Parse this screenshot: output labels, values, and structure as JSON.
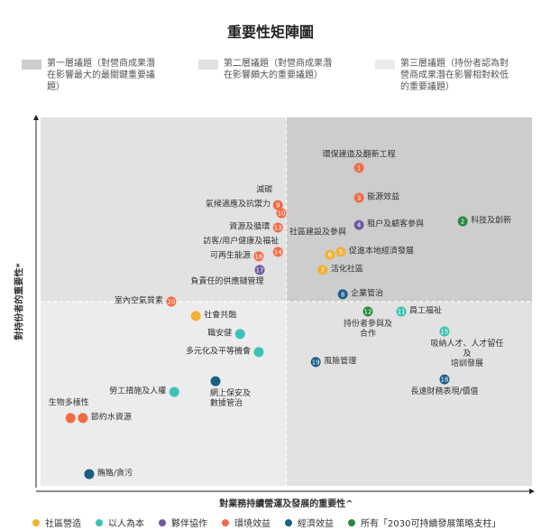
{
  "chart_data": {
    "type": "scatter",
    "title": "重要性矩陣圖",
    "tiers": [
      {
        "color": "#cdcdcd",
        "label": "第一層議題（對營商成果潛在影響最大的最關鍵重要議題）"
      },
      {
        "color": "#e2e2e2",
        "label": "第二層議題（對營商成果潛在影響頗大的重要議題）"
      },
      {
        "color": "#ececec",
        "label": "第三層議題（持份者認為對營商成果潛在影響相對較低的重要議題）"
      }
    ],
    "x_label": "對業務持續營運及發展的重要性^",
    "y_label": "對持份者的重要性*",
    "xlim": [
      0,
      100
    ],
    "ylim": [
      0,
      100
    ],
    "series": [
      {
        "name": "社區營造",
        "color": "#f2b134",
        "ids": [
          "5",
          "6",
          "7",
          null
        ],
        "labels": [
          "促進本地經濟發展",
          "社區建設及參與",
          "活化社區",
          "社會共融"
        ],
        "x": [
          61.1,
          58.9,
          57.4,
          31.6
        ],
        "y": [
          63.5,
          62.7,
          58.6,
          46.1
        ]
      },
      {
        "name": "以人為本",
        "color": "#3cc3b3",
        "ids": [
          "11",
          null,
          null,
          "15",
          null
        ],
        "labels": [
          "員工福祉",
          "職安健",
          "多元化及平等機會",
          "吸納人才、人才留任及\n培訓發展",
          "勞工措施及人權"
        ],
        "x": [
          73.4,
          40.6,
          44.4,
          82.2,
          27.2
        ],
        "y": [
          47.3,
          41.2,
          36.3,
          41.9,
          25.5
        ]
      },
      {
        "name": "夥伴協作",
        "color": "#6f5aa0",
        "ids": [
          "4",
          "17"
        ],
        "labels": [
          "租户及顧客參與",
          "負責任的供應鏈管理"
        ],
        "x": [
          64.8,
          44.6
        ],
        "y": [
          70.8,
          58.6
        ]
      },
      {
        "name": "環境效益",
        "color": "#f26b45",
        "ids": [
          "1",
          "3",
          "9",
          "10",
          "13",
          "14",
          "16",
          "20",
          null,
          null
        ],
        "labels": [
          "環保建造及翻新工程",
          "能源效益",
          "減碳",
          "氣候適應及抗禦力",
          "資源及循環",
          "訪客/用户健康及福祉",
          "可再生能源",
          "室內空氣質素",
          "生物多樣性",
          "節約水資源"
        ],
        "x": [
          64.8,
          64.8,
          48.3,
          49.0,
          48.3,
          48.3,
          44.4,
          26.6,
          6.1,
          8.6
        ],
        "y": [
          86.3,
          78.2,
          76.2,
          74.0,
          70.1,
          63.5,
          62.3,
          50.0,
          18.4,
          18.4
        ]
      },
      {
        "name": "經濟效益",
        "color": "#1d5e85",
        "ids": [
          "8",
          "19",
          "18",
          null,
          null
        ],
        "labels": [
          "企業管治",
          "風險管理",
          "長遠財務表現/價值",
          "網上保安及\n數據管治",
          "賄賂/貪污"
        ],
        "x": [
          61.5,
          56.0,
          82.2,
          35.6,
          9.9
        ],
        "y": [
          52.0,
          33.6,
          28.9,
          28.4,
          3.2
        ]
      },
      {
        "name": "所有「2030可持續發展策略支柱」",
        "color": "#2a8a3e",
        "ids": [
          "2",
          "12"
        ],
        "labels": [
          "科技及創新",
          "持份者參與及\n合作"
        ],
        "x": [
          85.9,
          66.6
        ],
        "y": [
          71.8,
          47.3
        ]
      }
    ]
  }
}
